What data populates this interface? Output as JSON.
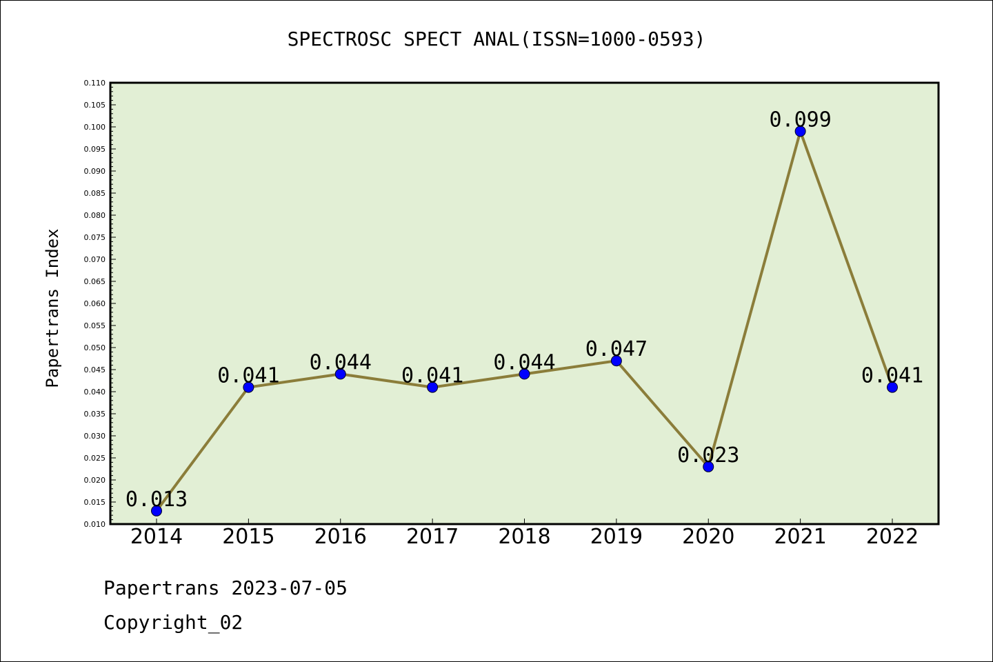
{
  "chart_data": {
    "type": "line",
    "title": "SPECTROSC SPECT ANAL(ISSN=1000-0593)",
    "xlabel": "",
    "ylabel": "Papertrans Index",
    "categories": [
      "2014",
      "2015",
      "2016",
      "2017",
      "2018",
      "2019",
      "2020",
      "2021",
      "2022"
    ],
    "series": [
      {
        "values": [
          0.013,
          0.041,
          0.044,
          0.041,
          0.044,
          0.047,
          0.023,
          0.099,
          0.041
        ],
        "data_labels": [
          "0.013",
          "0.041",
          "0.044",
          "0.041",
          "0.044",
          "0.047",
          "0.023",
          "0.099",
          "0.041"
        ]
      }
    ],
    "ylim": [
      0.01,
      0.11
    ],
    "ytick_labels": [
      "0.010",
      "0.015",
      "0.020",
      "0.025",
      "0.030",
      "0.035",
      "0.040",
      "0.045",
      "0.050",
      "0.055",
      "0.060",
      "0.065",
      "0.070",
      "0.075",
      "0.080",
      "0.085",
      "0.090",
      "0.095",
      "0.100",
      "0.105",
      "0.110"
    ],
    "grid": false,
    "legend": "none",
    "colors": {
      "plot_background": "#e2efd5",
      "line": "#8b7d3a",
      "marker": "#0000ff"
    }
  },
  "footer": {
    "date_line": "Papertrans 2023-07-05",
    "copyright_line": "Copyright_02"
  }
}
